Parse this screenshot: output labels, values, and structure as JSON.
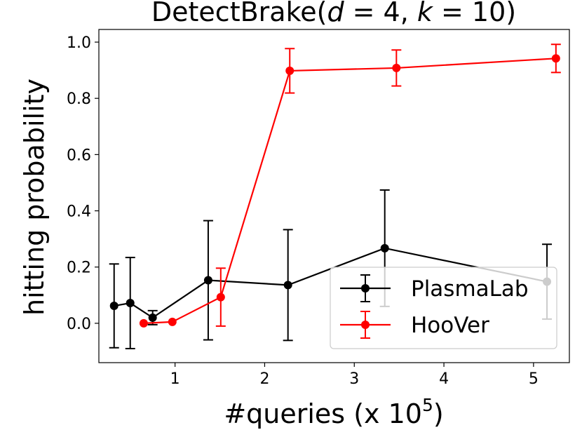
{
  "chart_data": {
    "type": "line",
    "title": "DetectBrake(d = 4, k = 10)",
    "title_parts": {
      "prefix": "DetectBrake(",
      "var_d": "d",
      "eq_d": " = 4, ",
      "var_k": "k",
      "eq_k": " = 10)"
    },
    "xlabel": "#queries (x 10⁵)",
    "xlabel_parts": {
      "main": "#queries (x 10",
      "exponent": "5",
      "close": ")"
    },
    "ylabel": "hitting probability",
    "xlim": [
      0.15,
      5.4
    ],
    "ylim": [
      -0.14,
      1.045
    ],
    "xticks": [
      1,
      2,
      3,
      4,
      5
    ],
    "yticks": [
      0.0,
      0.2,
      0.4,
      0.6,
      0.8,
      1.0
    ],
    "ytick_labels": [
      "0.0",
      "0.2",
      "0.4",
      "0.6",
      "0.8",
      "1.0"
    ],
    "legend_position": "lower-right",
    "series": [
      {
        "name": "PlasmaLab",
        "color": "#000000",
        "x": [
          0.32,
          0.5,
          0.75,
          1.37,
          2.26,
          3.34,
          5.15
        ],
        "y": [
          0.062,
          0.072,
          0.02,
          0.153,
          0.136,
          0.267,
          0.148
        ],
        "err": [
          0.149,
          0.162,
          0.025,
          0.212,
          0.197,
          0.207,
          0.133
        ]
      },
      {
        "name": "HooVer",
        "color": "#ff0000",
        "x": [
          0.65,
          0.97,
          1.51,
          2.28,
          3.47,
          5.25
        ],
        "y": [
          0.0,
          0.005,
          0.093,
          0.898,
          0.908,
          0.942
        ],
        "err": [
          0.0,
          0.0,
          0.103,
          0.079,
          0.064,
          0.05
        ]
      }
    ]
  }
}
